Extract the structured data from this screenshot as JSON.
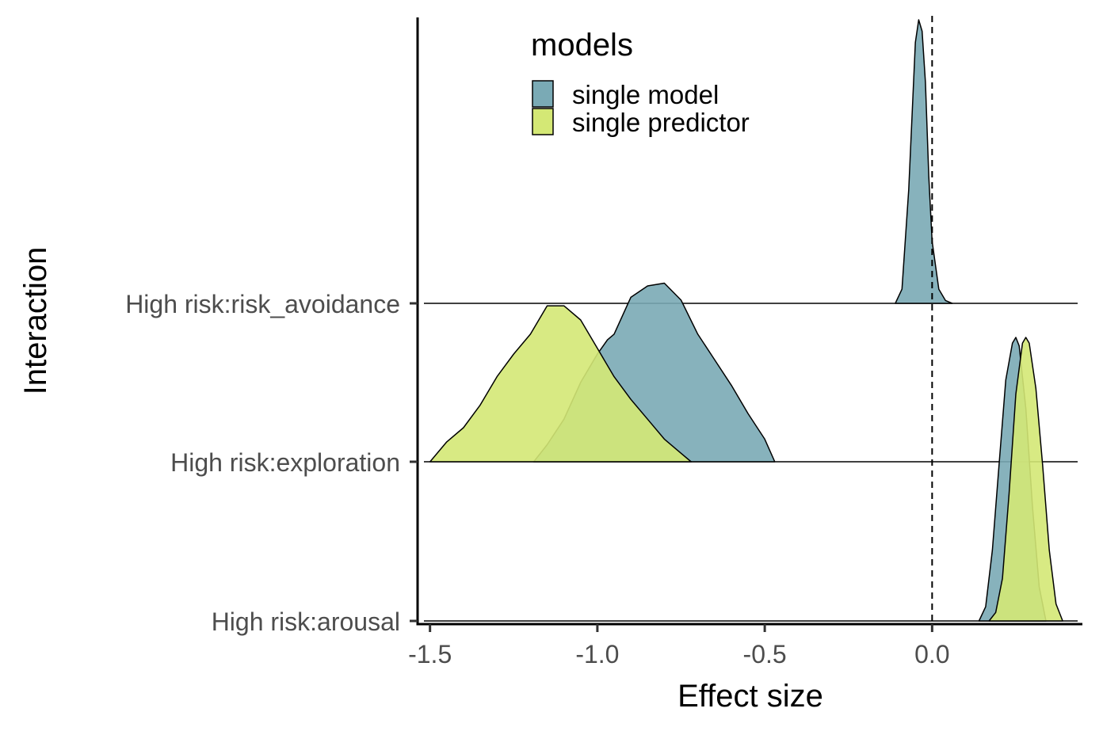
{
  "chart_data": {
    "type": "ridgeline",
    "xlabel": "Effect size",
    "ylabel": "Interaction",
    "xlim": [
      -1.53,
      0.43
    ],
    "x_ticks": [
      -1.5,
      -1.0,
      -0.5,
      0.0
    ],
    "x_tick_labels": [
      "-1.5",
      "-1.0",
      "-0.5",
      "0.0"
    ],
    "categories": [
      "High risk:arousal",
      "High risk:exploration",
      "High risk:risk_avoidance"
    ],
    "reference_line": {
      "x": 0.0,
      "style": "dashed"
    },
    "legend": {
      "title": "models",
      "placement": "top-center"
    },
    "series": [
      {
        "name": "single model",
        "color": "#7aaab5",
        "densities": [
          {
            "category": "High risk:arousal",
            "x": [
              0.14,
              0.16,
              0.18,
              0.2,
              0.22,
              0.24,
              0.25,
              0.26,
              0.28,
              0.3,
              0.32,
              0.34
            ],
            "y": [
              0.0,
              0.05,
              0.25,
              0.55,
              0.85,
              0.98,
              1.0,
              0.97,
              0.75,
              0.4,
              0.12,
              0.0
            ]
          },
          {
            "category": "High risk:exploration",
            "x": [
              -1.19,
              -1.15,
              -1.1,
              -1.05,
              -1.0,
              -0.97,
              -0.95,
              -0.9,
              -0.85,
              -0.8,
              -0.75,
              -0.7,
              -0.65,
              -0.6,
              -0.55,
              -0.5,
              -0.47
            ],
            "y": [
              0.0,
              0.06,
              0.15,
              0.28,
              0.38,
              0.43,
              0.45,
              0.58,
              0.62,
              0.63,
              0.57,
              0.45,
              0.36,
              0.27,
              0.17,
              0.08,
              0.0
            ]
          },
          {
            "category": "High risk:risk_avoidance",
            "x": [
              -0.11,
              -0.09,
              -0.07,
              -0.05,
              -0.04,
              -0.03,
              -0.02,
              -0.01,
              0.0,
              0.02,
              0.04,
              0.06
            ],
            "y": [
              0.0,
              0.05,
              0.4,
              0.92,
              1.0,
              0.96,
              0.78,
              0.45,
              0.22,
              0.05,
              0.01,
              0.0
            ]
          }
        ]
      },
      {
        "name": "single predictor",
        "color": "#d4e875",
        "densities": [
          {
            "category": "High risk:arousal",
            "x": [
              0.17,
              0.19,
              0.21,
              0.23,
              0.25,
              0.27,
              0.28,
              0.29,
              0.31,
              0.33,
              0.35,
              0.37,
              0.39
            ],
            "y": [
              0.0,
              0.03,
              0.15,
              0.45,
              0.8,
              0.98,
              1.0,
              0.98,
              0.82,
              0.55,
              0.25,
              0.06,
              0.0
            ]
          },
          {
            "category": "High risk:exploration",
            "x": [
              -1.5,
              -1.45,
              -1.4,
              -1.35,
              -1.3,
              -1.25,
              -1.2,
              -1.15,
              -1.1,
              -1.05,
              -1.0,
              -0.95,
              -0.9,
              -0.85,
              -0.8,
              -0.75,
              -0.72
            ],
            "y": [
              0.0,
              0.07,
              0.12,
              0.2,
              0.3,
              0.38,
              0.45,
              0.55,
              0.55,
              0.5,
              0.4,
              0.3,
              0.22,
              0.15,
              0.08,
              0.03,
              0.0
            ]
          },
          {
            "category": "High risk:risk_avoidance",
            "x": [],
            "y": []
          }
        ]
      }
    ]
  }
}
